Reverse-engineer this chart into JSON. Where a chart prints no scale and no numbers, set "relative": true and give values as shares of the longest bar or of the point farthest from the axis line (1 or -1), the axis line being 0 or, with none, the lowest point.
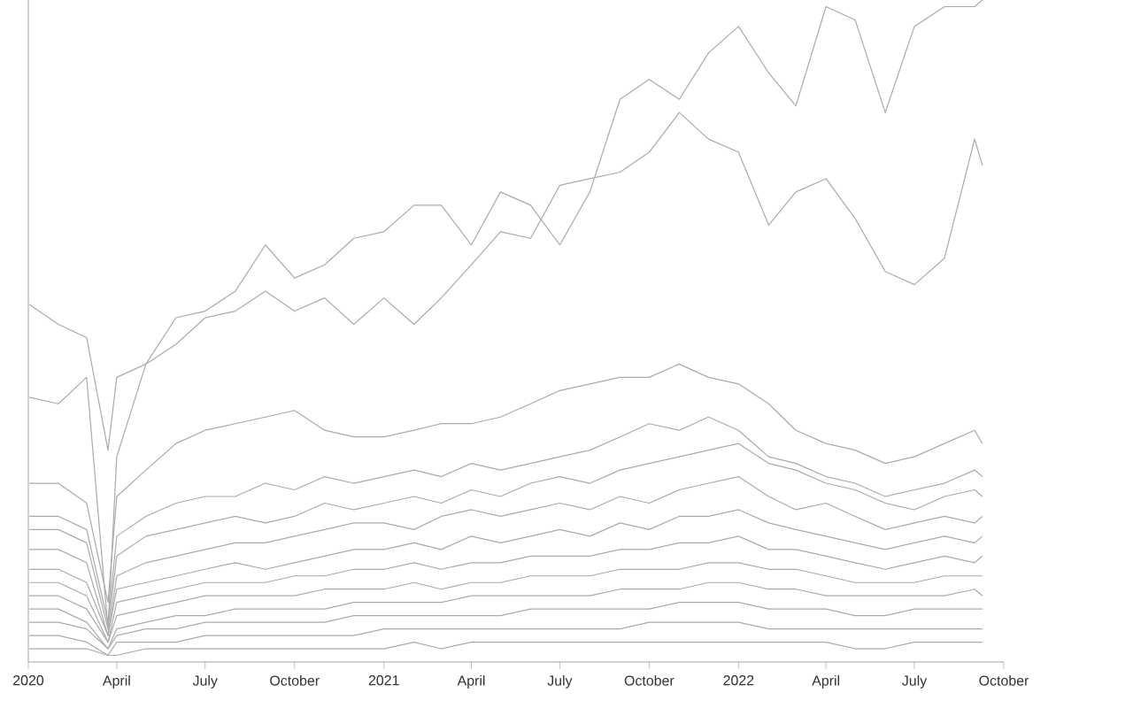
{
  "chart_data": {
    "type": "line",
    "relative": true,
    "tick_labels": "x",
    "x": [
      "2020-01-02",
      "2020-02-01",
      "2020-03-01",
      "2020-03-23",
      "2020-04-01",
      "2020-05-01",
      "2020-06-01",
      "2020-07-01",
      "2020-08-01",
      "2020-09-01",
      "2020-10-01",
      "2020-11-01",
      "2020-12-01",
      "2021-01-01",
      "2021-02-01",
      "2021-03-01",
      "2021-04-01",
      "2021-05-01",
      "2021-06-01",
      "2021-07-01",
      "2021-08-01",
      "2021-09-01",
      "2021-10-01",
      "2021-11-01",
      "2021-12-01",
      "2022-01-01",
      "2022-02-01",
      "2022-03-01",
      "2022-04-01",
      "2022-05-01",
      "2022-06-01",
      "2022-07-01",
      "2022-08-01",
      "2022-09-01",
      "2022-09-09"
    ],
    "xlim": [
      "2020-01-01",
      "2022-10-01"
    ],
    "xticks": [
      {
        "value": "2020-01-01",
        "label": "2020"
      },
      {
        "value": "2020-04-01",
        "label": "April"
      },
      {
        "value": "2020-07-01",
        "label": "July"
      },
      {
        "value": "2020-10-01",
        "label": "October"
      },
      {
        "value": "2021-01-01",
        "label": "2021"
      },
      {
        "value": "2021-04-01",
        "label": "April"
      },
      {
        "value": "2021-07-01",
        "label": "July"
      },
      {
        "value": "2021-10-01",
        "label": "October"
      },
      {
        "value": "2022-01-01",
        "label": "2022"
      },
      {
        "value": "2022-04-01",
        "label": "April"
      },
      {
        "value": "2022-07-01",
        "label": "July"
      },
      {
        "value": "2022-10-01",
        "label": "October"
      }
    ],
    "series": [
      {
        "color": "#aaaaaa",
        "values": [
          0.54,
          0.51,
          0.49,
          0.32,
          0.43,
          0.45,
          0.52,
          0.53,
          0.56,
          0.63,
          0.58,
          0.6,
          0.64,
          0.65,
          0.69,
          0.69,
          0.63,
          0.71,
          0.69,
          0.63,
          0.71,
          0.85,
          0.88,
          0.85,
          0.92,
          0.96,
          0.89,
          0.84,
          0.99,
          0.97,
          0.83,
          0.96,
          0.99,
          0.99,
          1
        ]
      },
      {
        "color": "#aaaaaa",
        "values": [
          0.4,
          0.39,
          0.43,
          0.05,
          0.31,
          0.45,
          0.48,
          0.52,
          0.53,
          0.56,
          0.53,
          0.55,
          0.51,
          0.55,
          0.51,
          0.55,
          0.6,
          0.65,
          0.64,
          0.72,
          0.73,
          0.74,
          0.77,
          0.83,
          0.79,
          0.77,
          0.66,
          0.71,
          0.73,
          0.67,
          0.59,
          0.57,
          0.61,
          0.79,
          0.75
        ]
      },
      {
        "color": "#aaaaaa",
        "values": [
          0.27,
          0.27,
          0.24,
          0.09,
          0.25,
          0.29,
          0.33,
          0.35,
          0.36,
          0.37,
          0.38,
          0.35,
          0.34,
          0.34,
          0.35,
          0.36,
          0.36,
          0.37,
          0.39,
          0.41,
          0.42,
          0.43,
          0.43,
          0.45,
          0.43,
          0.42,
          0.39,
          0.35,
          0.33,
          0.32,
          0.3,
          0.31,
          0.33,
          0.35,
          0.33
        ]
      },
      {
        "color": "#aaaaaa",
        "values": [
          0.22,
          0.22,
          0.2,
          0.06,
          0.19,
          0.22,
          0.24,
          0.25,
          0.25,
          0.27,
          0.26,
          0.28,
          0.27,
          0.28,
          0.29,
          0.28,
          0.3,
          0.29,
          0.3,
          0.31,
          0.32,
          0.34,
          0.36,
          0.35,
          0.37,
          0.35,
          0.31,
          0.3,
          0.28,
          0.27,
          0.25,
          0.26,
          0.27,
          0.29,
          0.28
        ]
      },
      {
        "color": "#aaaaaa",
        "values": [
          0.2,
          0.2,
          0.18,
          0.05,
          0.16,
          0.19,
          0.2,
          0.21,
          0.22,
          0.21,
          0.22,
          0.24,
          0.23,
          0.24,
          0.25,
          0.24,
          0.26,
          0.25,
          0.27,
          0.28,
          0.27,
          0.29,
          0.3,
          0.31,
          0.32,
          0.33,
          0.3,
          0.29,
          0.27,
          0.26,
          0.24,
          0.23,
          0.25,
          0.26,
          0.25
        ]
      },
      {
        "color": "#aaaaaa",
        "values": [
          0.17,
          0.17,
          0.15,
          0.04,
          0.13,
          0.15,
          0.16,
          0.17,
          0.18,
          0.18,
          0.19,
          0.2,
          0.21,
          0.21,
          0.2,
          0.22,
          0.23,
          0.22,
          0.23,
          0.24,
          0.23,
          0.25,
          0.24,
          0.26,
          0.27,
          0.28,
          0.25,
          0.23,
          0.24,
          0.22,
          0.2,
          0.21,
          0.22,
          0.21,
          0.22
        ]
      },
      {
        "color": "#aaaaaa",
        "values": [
          0.14,
          0.14,
          0.12,
          0.04,
          0.11,
          0.12,
          0.13,
          0.14,
          0.15,
          0.14,
          0.15,
          0.16,
          0.17,
          0.17,
          0.18,
          0.17,
          0.19,
          0.18,
          0.19,
          0.2,
          0.19,
          0.21,
          0.2,
          0.22,
          0.22,
          0.23,
          0.21,
          0.2,
          0.19,
          0.18,
          0.17,
          0.18,
          0.19,
          0.18,
          0.19
        ]
      },
      {
        "color": "#aaaaaa",
        "values": [
          0.12,
          0.12,
          0.1,
          0.03,
          0.09,
          0.1,
          0.11,
          0.12,
          0.12,
          0.12,
          0.13,
          0.13,
          0.14,
          0.14,
          0.15,
          0.14,
          0.15,
          0.15,
          0.16,
          0.16,
          0.16,
          0.17,
          0.17,
          0.18,
          0.18,
          0.19,
          0.17,
          0.17,
          0.16,
          0.15,
          0.14,
          0.15,
          0.16,
          0.15,
          0.16
        ]
      },
      {
        "color": "#aaaaaa",
        "values": [
          0.1,
          0.1,
          0.08,
          0.03,
          0.07,
          0.08,
          0.09,
          0.1,
          0.1,
          0.1,
          0.1,
          0.11,
          0.11,
          0.11,
          0.12,
          0.11,
          0.12,
          0.12,
          0.13,
          0.13,
          0.13,
          0.14,
          0.14,
          0.14,
          0.15,
          0.15,
          0.14,
          0.14,
          0.13,
          0.12,
          0.12,
          0.12,
          0.13,
          0.13,
          0.13
        ]
      },
      {
        "color": "#aaaaaa",
        "values": [
          0.08,
          0.08,
          0.06,
          0.02,
          0.05,
          0.06,
          0.07,
          0.07,
          0.08,
          0.08,
          0.08,
          0.08,
          0.09,
          0.09,
          0.09,
          0.09,
          0.1,
          0.1,
          0.1,
          0.1,
          0.1,
          0.11,
          0.11,
          0.11,
          0.12,
          0.12,
          0.11,
          0.11,
          0.1,
          0.1,
          0.1,
          0.1,
          0.1,
          0.11,
          0.1
        ]
      },
      {
        "color": "#aaaaaa",
        "values": [
          0.06,
          0.06,
          0.05,
          0.02,
          0.04,
          0.05,
          0.05,
          0.06,
          0.06,
          0.06,
          0.06,
          0.06,
          0.07,
          0.07,
          0.07,
          0.07,
          0.07,
          0.07,
          0.08,
          0.08,
          0.08,
          0.08,
          0.08,
          0.09,
          0.09,
          0.09,
          0.08,
          0.08,
          0.08,
          0.07,
          0.07,
          0.08,
          0.08,
          0.08,
          0.08
        ]
      },
      {
        "color": "#aaaaaa",
        "values": [
          0.04,
          0.04,
          0.03,
          0.01,
          0.03,
          0.03,
          0.03,
          0.04,
          0.04,
          0.04,
          0.04,
          0.04,
          0.04,
          0.05,
          0.05,
          0.05,
          0.05,
          0.05,
          0.05,
          0.05,
          0.05,
          0.05,
          0.06,
          0.06,
          0.06,
          0.06,
          0.05,
          0.05,
          0.05,
          0.05,
          0.05,
          0.05,
          0.05,
          0.05,
          0.05
        ]
      },
      {
        "color": "#aaaaaa",
        "values": [
          0.02,
          0.02,
          0.02,
          0.01,
          0.01,
          0.02,
          0.02,
          0.02,
          0.02,
          0.02,
          0.02,
          0.02,
          0.02,
          0.02,
          0.03,
          0.02,
          0.03,
          0.03,
          0.03,
          0.03,
          0.03,
          0.03,
          0.03,
          0.03,
          0.03,
          0.03,
          0.03,
          0.03,
          0.03,
          0.02,
          0.02,
          0.03,
          0.03,
          0.03,
          0.03
        ]
      }
    ]
  }
}
